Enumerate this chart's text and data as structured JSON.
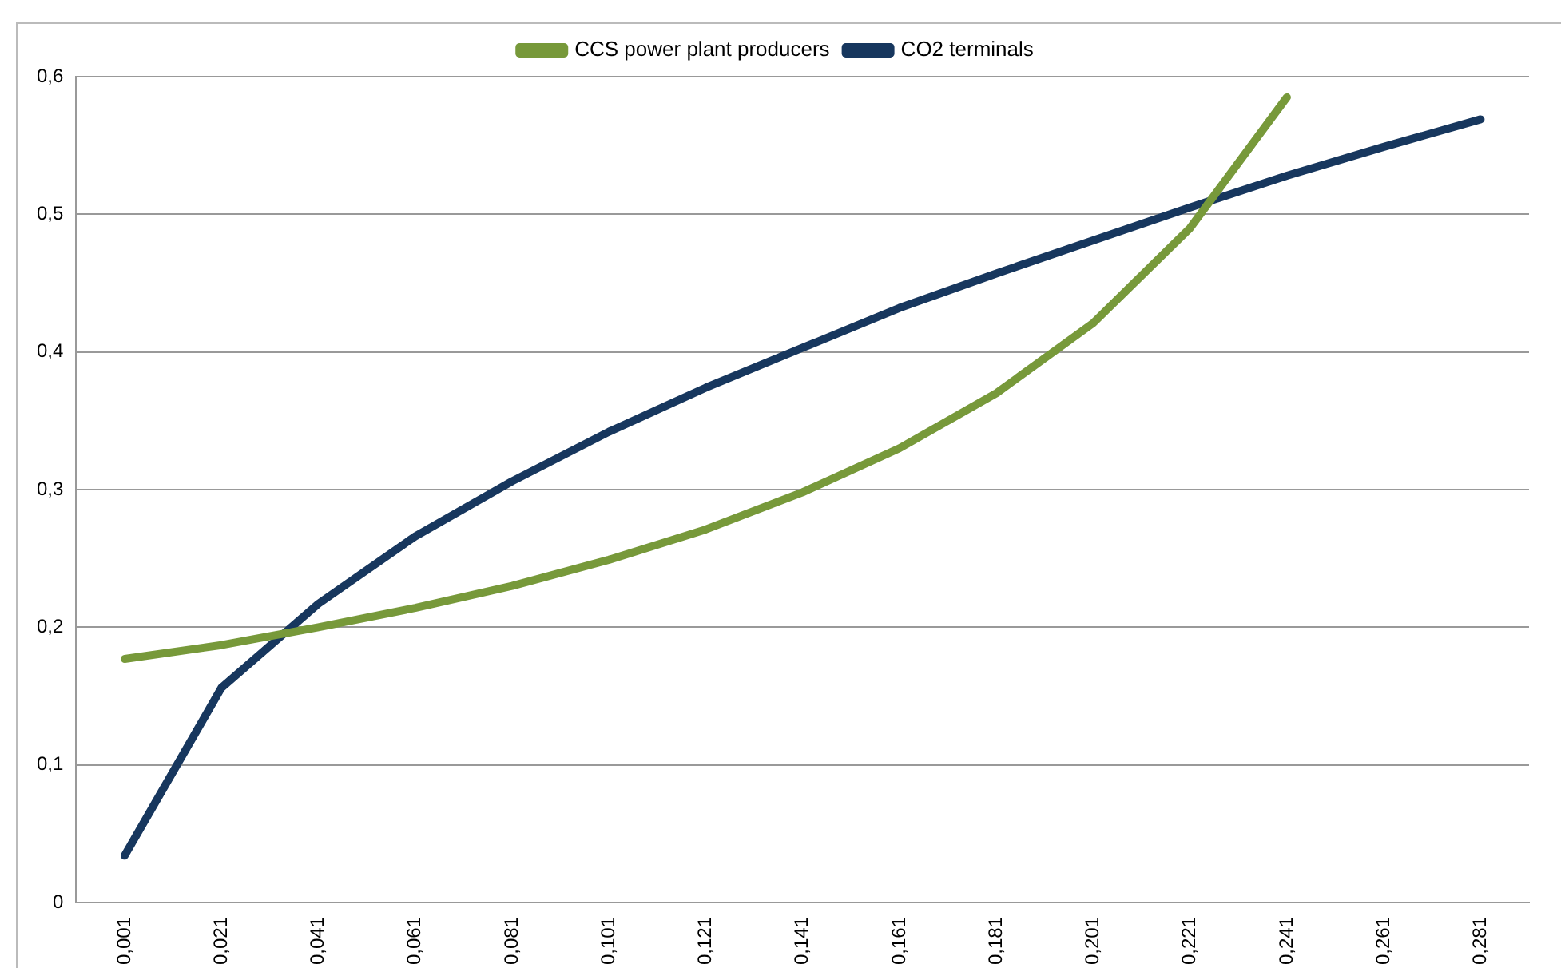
{
  "chart_data": {
    "type": "line",
    "categories": [
      "0,001",
      "0,021",
      "0,041",
      "0,061",
      "0,081",
      "0,101",
      "0,121",
      "0,141",
      "0,161",
      "0,181",
      "0,201",
      "0,221",
      "0,241",
      "0,261",
      "0,281"
    ],
    "series": [
      {
        "name": "CCS power plant producers",
        "color": "#77993a",
        "values": [
          0.177,
          0.187,
          0.2,
          0.214,
          0.23,
          0.249,
          0.271,
          0.298,
          0.33,
          0.37,
          0.421,
          0.49,
          0.585,
          null,
          null
        ]
      },
      {
        "name": "CO2 terminals",
        "color": "#17375e",
        "values": [
          0.034,
          0.156,
          0.217,
          0.266,
          0.306,
          0.342,
          0.374,
          0.403,
          0.432,
          0.457,
          0.481,
          0.505,
          0.528,
          0.549,
          0.569
        ]
      }
    ],
    "ylim": [
      0,
      0.6
    ],
    "yticks": [
      0,
      {
        "value": 0.1,
        "label": "0,1"
      },
      {
        "value": 0.2,
        "label": "0,2"
      },
      {
        "value": 0.3,
        "label": "0,3"
      },
      {
        "value": 0.4,
        "label": "0,4"
      },
      {
        "value": 0.5,
        "label": "0,5"
      },
      {
        "value": 0.6,
        "label": "0,6"
      }
    ],
    "grid": "y",
    "legend": "top",
    "marker": "none",
    "line_style": "solid"
  }
}
